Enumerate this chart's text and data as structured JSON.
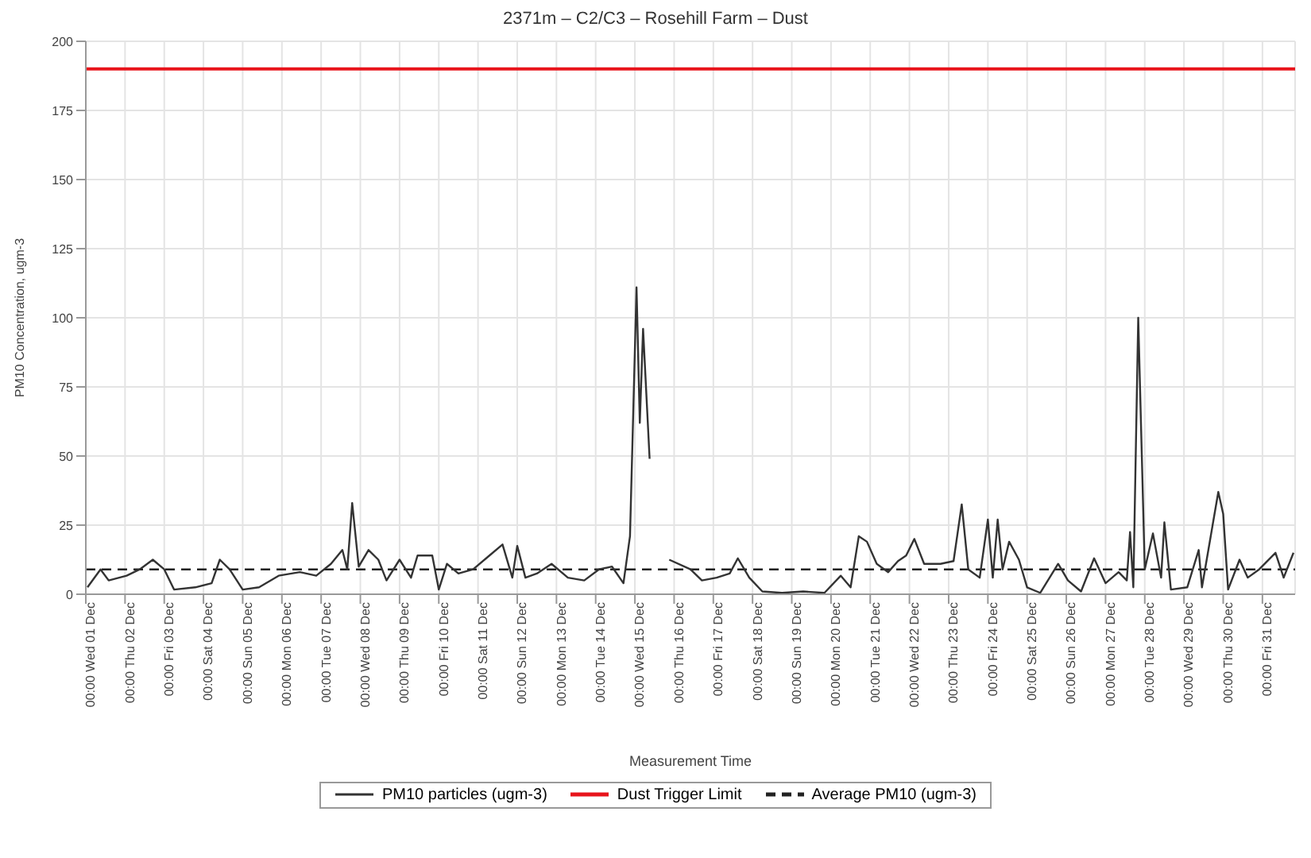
{
  "chart_data": {
    "type": "line",
    "title": "2371m – C2/C3 – Rosehill Farm – Dust",
    "xlabel": "Measurement Time",
    "ylabel": "PM10 Concentration, ugm-3",
    "series": [
      {
        "name": "PM10 particles (ugm-3)",
        "color": "#333333",
        "x": [
          "--12-01T01:00",
          "--12-01T09:00",
          "--12-01T14:00",
          "--12-02T01:00",
          "--12-02T09:00",
          "--12-02T17:00",
          "--12-03T00:00",
          "--12-03T06:00",
          "--12-03T19:00",
          "--12-04T05:00",
          "--12-04T10:00",
          "--12-04T16:00",
          "--12-05T00:00",
          "--12-05T10:00",
          "--12-05T22:00",
          "--12-06T11:00",
          "--12-06T21:00",
          "--12-07T06:00",
          "--12-07T13:00",
          "--12-07T16:00",
          "--12-07T19:00",
          "--12-07T23:00",
          "--12-08T05:00",
          "--12-08T11:00",
          "--12-08T16:00",
          "--12-09T00:00",
          "--12-09T07:00",
          "--12-09T11:00",
          "--12-09T20:00",
          "--12-10T00:00",
          "--12-10T05:00",
          "--12-10T12:00",
          "--12-10T21:00",
          "--12-11T07:00",
          "--12-11T15:00",
          "--12-11T21:00",
          "--12-12T00:00",
          "--12-12T05:00",
          "--12-12T12:00",
          "--12-12T21:00",
          "--12-13T07:00",
          "--12-13T17:00",
          "--12-14T02:00",
          "--12-14T10:00",
          "--12-14T17:00",
          "--12-14T21:00",
          "--12-15T01:00",
          "--12-15T03:00",
          "--12-15T05:00",
          "--12-15T09:00",
          "--12-15T15:00",
          "--12-15T21:00",
          "--12-16T10:00",
          "--12-16T17:00",
          "--12-17T02:00",
          "--12-17T10:00",
          "--12-17T15:00",
          "--12-17T22:00",
          "--12-18T06:00",
          "--12-18T18:00",
          "--12-19T07:00",
          "--12-19T20:00",
          "--12-20T06:00",
          "--12-20T12:00",
          "--12-20T17:00",
          "--12-20T22:00",
          "--12-21T04:00",
          "--12-21T11:00",
          "--12-21T17:00",
          "--12-21T22:00",
          "--12-22T03:00",
          "--12-22T09:00",
          "--12-22T19:00",
          "--12-23T03:00",
          "--12-23T08:00",
          "--12-23T12:00",
          "--12-23T19:00",
          "--12-24T00:00",
          "--12-24T03:00",
          "--12-24T06:00",
          "--12-24T09:00",
          "--12-24T13:00",
          "--12-24T19:00",
          "--12-25T00:00",
          "--12-25T08:00",
          "--12-25T19:00",
          "--12-26T01:00",
          "--12-26T09:00",
          "--12-26T17:00",
          "--12-27T00:00",
          "--12-27T08:00",
          "--12-27T13:00",
          "--12-27T15:00",
          "--12-27T17:00",
          "--12-27T20:00",
          "--12-28T00:00",
          "--12-28T05:00",
          "--12-28T10:00",
          "--12-28T12:00",
          "--12-28T16:00",
          "--12-29T02:00",
          "--12-29T09:00",
          "--12-29T11:00",
          "--12-29T21:00",
          "--12-30T00:00",
          "--12-30T03:00",
          "--12-30T10:00",
          "--12-30T15:00",
          "--12-30T22:00",
          "--12-31T08:00",
          "--12-31T13:00",
          "--12-31T19:00"
        ],
        "values": [
          2.5,
          9,
          5,
          6.7,
          9,
          12.5,
          9,
          1.7,
          2.5,
          4,
          12.5,
          9,
          1.7,
          2.5,
          6.7,
          8,
          6.7,
          11,
          16,
          9,
          33,
          10,
          16,
          12.5,
          5,
          12.5,
          6,
          14,
          14,
          1.7,
          11,
          7.5,
          9,
          14,
          18,
          6,
          17.5,
          6,
          7.5,
          11,
          6,
          5,
          9,
          10,
          4,
          21,
          111,
          62,
          96,
          49,
          null,
          12.5,
          9,
          5,
          6,
          7.5,
          13,
          6,
          1,
          0.5,
          1,
          0.5,
          6.7,
          2.5,
          21,
          19,
          11,
          8,
          12,
          14,
          20,
          11,
          11,
          12,
          32.5,
          9,
          6,
          27,
          6,
          27,
          9,
          19,
          12.5,
          2.5,
          0.5,
          11,
          5,
          1,
          13,
          4,
          8,
          5,
          22.5,
          2.5,
          100,
          9,
          22,
          6,
          26,
          1.7,
          2.5,
          16,
          2.5,
          37,
          29,
          1.7,
          12.5,
          6,
          9,
          15,
          6,
          15
        ]
      }
    ],
    "ref_lines": [
      {
        "axis": "y",
        "value": 190,
        "label": "Dust Trigger Limit",
        "color": "#e8141c",
        "line_style": "solid"
      },
      {
        "axis": "y",
        "value": 9,
        "label": "Average PM10 (ugm-3)",
        "color": "#222222",
        "line_style": "dashed"
      }
    ],
    "xlim": [
      "--12-01T00:00",
      "--12-31T20:00"
    ],
    "xticks": [
      {
        "value": "--12-01",
        "label": "00:00 Wed 01 Dec"
      },
      {
        "value": "--12-02",
        "label": "00:00 Thu 02 Dec"
      },
      {
        "value": "--12-03",
        "label": "00:00 Fri 03 Dec"
      },
      {
        "value": "--12-04",
        "label": "00:00 Sat 04 Dec"
      },
      {
        "value": "--12-05",
        "label": "00:00 Sun 05 Dec"
      },
      {
        "value": "--12-06",
        "label": "00:00 Mon 06 Dec"
      },
      {
        "value": "--12-07",
        "label": "00:00 Tue 07 Dec"
      },
      {
        "value": "--12-08",
        "label": "00:00 Wed 08 Dec"
      },
      {
        "value": "--12-09",
        "label": "00:00 Thu 09 Dec"
      },
      {
        "value": "--12-10",
        "label": "00:00 Fri 10 Dec"
      },
      {
        "value": "--12-11",
        "label": "00:00 Sat 11 Dec"
      },
      {
        "value": "--12-12",
        "label": "00:00 Sun 12 Dec"
      },
      {
        "value": "--12-13",
        "label": "00:00 Mon 13 Dec"
      },
      {
        "value": "--12-14",
        "label": "00:00 Tue 14 Dec"
      },
      {
        "value": "--12-15",
        "label": "00:00 Wed 15 Dec"
      },
      {
        "value": "--12-16",
        "label": "00:00 Thu 16 Dec"
      },
      {
        "value": "--12-17",
        "label": "00:00 Fri 17 Dec"
      },
      {
        "value": "--12-18",
        "label": "00:00 Sat 18 Dec"
      },
      {
        "value": "--12-19",
        "label": "00:00 Sun 19 Dec"
      },
      {
        "value": "--12-20",
        "label": "00:00 Mon 20 Dec"
      },
      {
        "value": "--12-21",
        "label": "00:00 Tue 21 Dec"
      },
      {
        "value": "--12-22",
        "label": "00:00 Wed 22 Dec"
      },
      {
        "value": "--12-23",
        "label": "00:00 Thu 23 Dec"
      },
      {
        "value": "--12-24",
        "label": "00:00 Fri 24 Dec"
      },
      {
        "value": "--12-25",
        "label": "00:00 Sat 25 Dec"
      },
      {
        "value": "--12-26",
        "label": "00:00 Sun 26 Dec"
      },
      {
        "value": "--12-27",
        "label": "00:00 Mon 27 Dec"
      },
      {
        "value": "--12-28",
        "label": "00:00 Tue 28 Dec"
      },
      {
        "value": "--12-29",
        "label": "00:00 Wed 29 Dec"
      },
      {
        "value": "--12-30",
        "label": "00:00 Thu 30 Dec"
      },
      {
        "value": "--12-31",
        "label": "00:00 Fri 31 Dec"
      }
    ],
    "ylim": [
      0,
      200
    ],
    "yticks": [
      0,
      25,
      50,
      75,
      100,
      125,
      150,
      175,
      200
    ],
    "grid": true,
    "legend": "bottom",
    "marker": "none",
    "line_style": "solid"
  }
}
